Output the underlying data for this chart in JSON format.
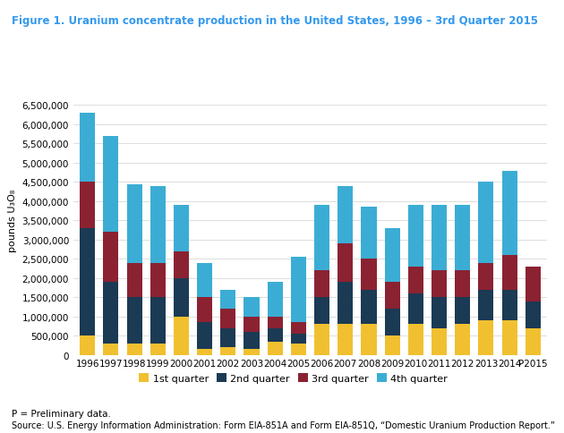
{
  "title": "Figure 1. Uranium concentrate production in the United States, 1996 – 3rd Quarter 2015",
  "ylabel": "pounds U₃O₈",
  "years": [
    "1996",
    "1997",
    "1998",
    "1999",
    "2000",
    "2001",
    "2002",
    "2003",
    "2004",
    "2005",
    "2006",
    "2007",
    "2008",
    "2009",
    "2010",
    "2011",
    "2012",
    "2013",
    "2014",
    "P2015"
  ],
  "q1": [
    500000,
    300000,
    300000,
    300000,
    1000000,
    150000,
    200000,
    150000,
    350000,
    300000,
    800000,
    800000,
    800000,
    500000,
    800000,
    700000,
    800000,
    900000,
    900000,
    700000
  ],
  "q2": [
    2800000,
    1600000,
    1200000,
    1200000,
    1000000,
    700000,
    500000,
    450000,
    350000,
    250000,
    700000,
    1100000,
    900000,
    700000,
    800000,
    800000,
    700000,
    800000,
    800000,
    700000
  ],
  "q3": [
    1200000,
    1300000,
    900000,
    900000,
    700000,
    650000,
    500000,
    400000,
    300000,
    300000,
    700000,
    1000000,
    800000,
    700000,
    700000,
    700000,
    700000,
    700000,
    900000,
    900000
  ],
  "q4": [
    1800000,
    2500000,
    2050000,
    2000000,
    1200000,
    900000,
    500000,
    500000,
    900000,
    1700000,
    1700000,
    1500000,
    1350000,
    1400000,
    1600000,
    1700000,
    1700000,
    2100000,
    2200000,
    0
  ],
  "color_q1": "#f0c030",
  "color_q2": "#1b3a54",
  "color_q3": "#8b2232",
  "color_q4": "#3badd4",
  "title_color": "#3399ee",
  "footer_note": "P = Preliminary data.",
  "footer_source": "Source: U.S. Energy Information Administration: Form EIA-851A and Form EIA-851Q, “Domestic Uranium Production Report.”",
  "ylim": [
    0,
    7000000
  ],
  "yticks": [
    0,
    500000,
    1000000,
    1500000,
    2000000,
    2500000,
    3000000,
    3500000,
    4000000,
    4500000,
    5000000,
    5500000,
    6000000,
    6500000
  ],
  "legend_labels": [
    "1st quarter",
    "2nd quarter",
    "3rd quarter",
    "4th quarter"
  ]
}
